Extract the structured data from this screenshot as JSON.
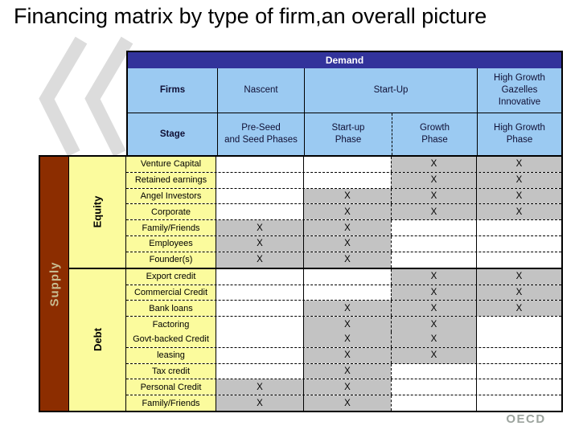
{
  "title": "Financing matrix by type of firm,an overall picture",
  "colors": {
    "demand_band": "#32339B",
    "header_blue": "#9BCAF2",
    "label_yellow": "#FBFB9D",
    "marked_gray": "#C3C3C3",
    "supply_brown": "#8C2D00"
  },
  "matrix": {
    "demand_label": "Demand",
    "supply_label": "Supply",
    "mark": "X",
    "firms_row": {
      "firms": "Firms",
      "nascent": "Nascent",
      "startup": "Start-Up",
      "high_growth": "High Growth\nGazelles\nInnovative"
    },
    "stage_row": {
      "stage": "Stage",
      "pre_seed": "Pre-Seed\nand Seed Phases",
      "startup": "Start-up\nPhase",
      "growth": "Growth\nPhase",
      "high_growth": "High Growth\nPhase"
    },
    "phase_keys": [
      "nascent",
      "startup",
      "growth",
      "high_growth"
    ],
    "sections": [
      {
        "label": "Equity",
        "rows": [
          {
            "label": "Venture Capital",
            "marks": [
              "growth",
              "high_growth"
            ]
          },
          {
            "label": "Retained earnings",
            "marks": [
              "growth",
              "high_growth"
            ]
          },
          {
            "label": "Angel Investors",
            "marks": [
              "startup",
              "growth",
              "high_growth"
            ]
          },
          {
            "label": "Corporate",
            "marks": [
              "startup",
              "growth",
              "high_growth"
            ]
          },
          {
            "label": "Family/Friends",
            "marks": [
              "nascent",
              "startup"
            ]
          },
          {
            "label": "Employees",
            "marks": [
              "nascent",
              "startup"
            ]
          },
          {
            "label": "Founder(s)",
            "marks": [
              "nascent",
              "startup"
            ]
          }
        ]
      },
      {
        "label": "Debt",
        "rows": [
          {
            "label": "Export credit",
            "marks": [
              "growth",
              "high_growth"
            ]
          },
          {
            "label": "Commercial Credit",
            "marks": [
              "growth",
              "high_growth"
            ]
          },
          {
            "label": "Bank loans",
            "marks": [
              "startup",
              "growth",
              "high_growth"
            ]
          },
          {
            "label": "Factoring",
            "marks": [
              "startup",
              "growth"
            ],
            "divider_below": false
          },
          {
            "label": "Govt-backed Credit",
            "marks": [
              "startup",
              "growth"
            ]
          },
          {
            "label": "leasing",
            "marks": [
              "startup",
              "growth"
            ]
          },
          {
            "label": "Tax credit",
            "marks": [
              "startup"
            ]
          },
          {
            "label": "Personal Credit",
            "marks": [
              "nascent",
              "startup"
            ]
          },
          {
            "label": "Family/Friends",
            "marks": [
              "nascent",
              "startup"
            ]
          }
        ]
      }
    ]
  },
  "footer": {
    "logo_text": "OECD"
  }
}
